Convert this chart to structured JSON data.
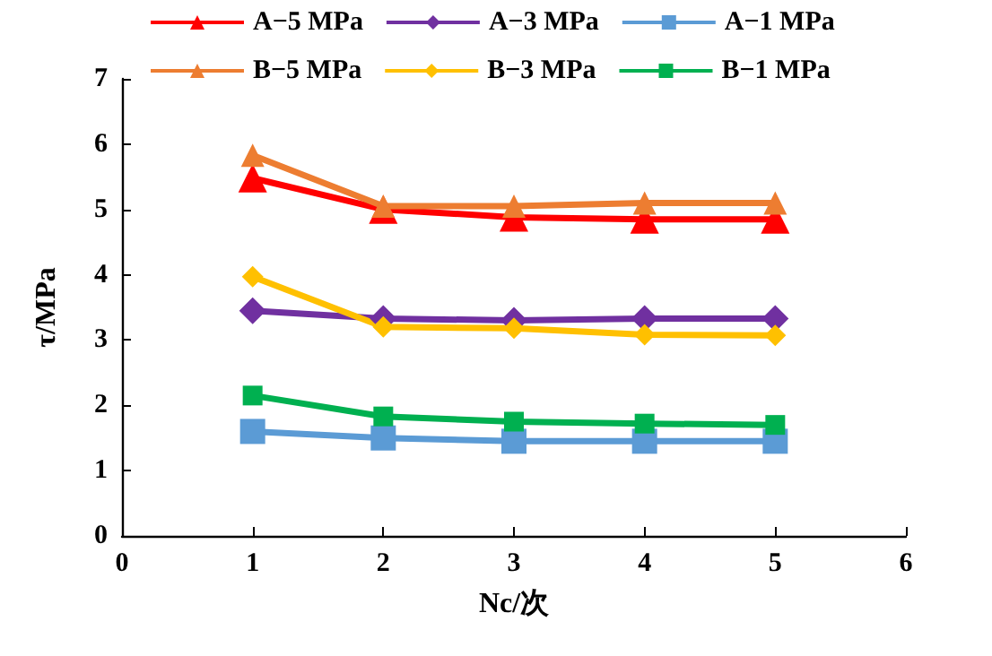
{
  "chart_data": {
    "type": "line",
    "xlabel": "Nc/次",
    "ylabel": "τ/MPa",
    "x": [
      1,
      2,
      3,
      4,
      5
    ],
    "xlim": [
      0,
      6
    ],
    "xticks": [
      0,
      1,
      2,
      3,
      4,
      5,
      6
    ],
    "ylim": [
      0,
      7
    ],
    "yticks": [
      0,
      1,
      2,
      3,
      4,
      5,
      6,
      7
    ],
    "grid": false,
    "legend": "top",
    "line_style": "solid",
    "series": [
      {
        "name": "A−5 MPa",
        "color": "#ff0000",
        "marker": "triangle",
        "values": [
          5.48,
          5.0,
          4.88,
          4.85,
          4.85
        ]
      },
      {
        "name": "A−3 MPa",
        "color": "#7030a0",
        "marker": "diamond",
        "values": [
          3.45,
          3.33,
          3.3,
          3.33,
          3.33
        ]
      },
      {
        "name": "A−1 MPa",
        "color": "#5b9bd5",
        "marker": "square",
        "values": [
          1.6,
          1.5,
          1.45,
          1.45,
          1.45
        ]
      },
      {
        "name": "B−5 MPa",
        "color": "#ed7d31",
        "marker": "triangle",
        "values": [
          5.83,
          5.05,
          5.05,
          5.1,
          5.1
        ]
      },
      {
        "name": "B−3 MPa",
        "color": "#ffc000",
        "marker": "diamond",
        "values": [
          3.97,
          3.2,
          3.18,
          3.08,
          3.07
        ]
      },
      {
        "name": "B−1 MPa",
        "color": "#00b050",
        "marker": "square",
        "values": [
          2.15,
          1.83,
          1.75,
          1.72,
          1.7
        ]
      }
    ]
  }
}
